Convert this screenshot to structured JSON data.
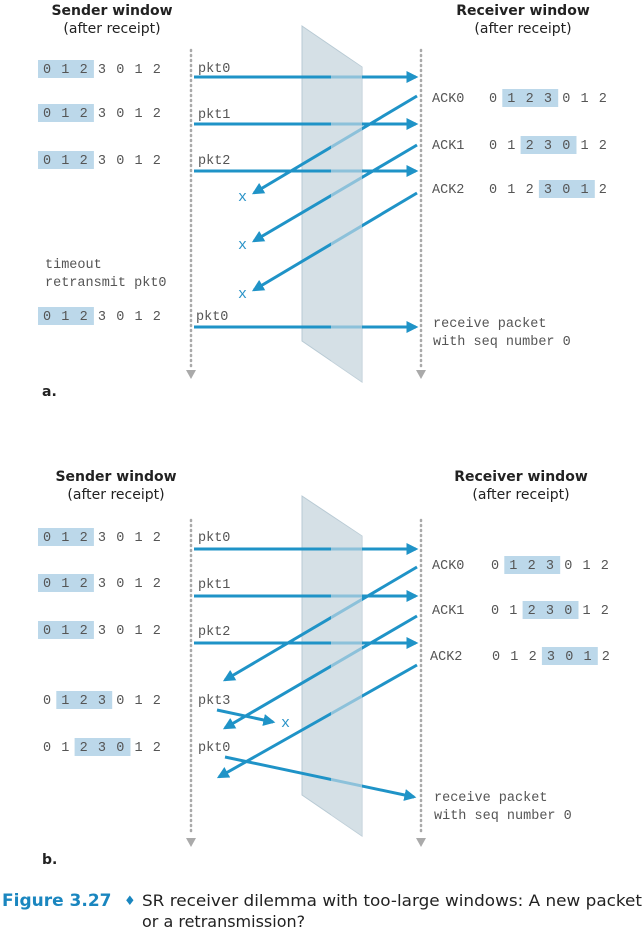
{
  "panel_a": {
    "sender_title": "Sender window",
    "sender_subtitle": "(after receipt)",
    "receiver_title": "Receiver window",
    "receiver_subtitle": "(after receipt)",
    "sender_windows": [
      {
        "digits": [
          "0",
          "1",
          "2",
          "3",
          "0",
          "1",
          "2"
        ],
        "highlight": [
          0,
          2
        ]
      },
      {
        "digits": [
          "0",
          "1",
          "2",
          "3",
          "0",
          "1",
          "2"
        ],
        "highlight": [
          0,
          2
        ]
      },
      {
        "digits": [
          "0",
          "1",
          "2",
          "3",
          "0",
          "1",
          "2"
        ],
        "highlight": [
          0,
          2
        ]
      },
      {
        "digits": [
          "0",
          "1",
          "2",
          "3",
          "0",
          "1",
          "2"
        ],
        "highlight": [
          0,
          2
        ]
      }
    ],
    "packets": [
      "pkt0",
      "pkt1",
      "pkt2",
      "pkt0"
    ],
    "acks": [
      "ACK0",
      "ACK1",
      "ACK2"
    ],
    "receiver_windows": [
      {
        "digits": [
          "0",
          "1",
          "2",
          "3",
          "0",
          "1",
          "2"
        ],
        "highlight": [
          1,
          3
        ]
      },
      {
        "digits": [
          "0",
          "1",
          "2",
          "3",
          "0",
          "1",
          "2"
        ],
        "highlight": [
          2,
          4
        ]
      },
      {
        "digits": [
          "0",
          "1",
          "2",
          "3",
          "0",
          "1",
          "2"
        ],
        "highlight": [
          3,
          5
        ]
      }
    ],
    "loss_marker": "x",
    "timeout_line1": "timeout",
    "timeout_line2": "retransmit pkt0",
    "receive_line1": "receive packet",
    "receive_line2": "with seq number 0",
    "label": "a."
  },
  "panel_b": {
    "sender_title": "Sender window",
    "sender_subtitle": "(after receipt)",
    "receiver_title": "Receiver window",
    "receiver_subtitle": "(after receipt)",
    "sender_windows": [
      {
        "digits": [
          "0",
          "1",
          "2",
          "3",
          "0",
          "1",
          "2"
        ],
        "highlight": [
          0,
          2
        ]
      },
      {
        "digits": [
          "0",
          "1",
          "2",
          "3",
          "0",
          "1",
          "2"
        ],
        "highlight": [
          0,
          2
        ]
      },
      {
        "digits": [
          "0",
          "1",
          "2",
          "3",
          "0",
          "1",
          "2"
        ],
        "highlight": [
          0,
          2
        ]
      },
      {
        "digits": [
          "0",
          "1",
          "2",
          "3",
          "0",
          "1",
          "2"
        ],
        "highlight": [
          1,
          3
        ]
      },
      {
        "digits": [
          "0",
          "1",
          "2",
          "3",
          "0",
          "1",
          "2"
        ],
        "highlight": [
          2,
          4
        ]
      }
    ],
    "packets": [
      "pkt0",
      "pkt1",
      "pkt2",
      "pkt3",
      "pkt0"
    ],
    "acks": [
      "ACK0",
      "ACK1",
      "ACK2"
    ],
    "receiver_windows": [
      {
        "digits": [
          "0",
          "1",
          "2",
          "3",
          "0",
          "1",
          "2"
        ],
        "highlight": [
          1,
          3
        ]
      },
      {
        "digits": [
          "0",
          "1",
          "2",
          "3",
          "0",
          "1",
          "2"
        ],
        "highlight": [
          2,
          4
        ]
      },
      {
        "digits": [
          "0",
          "1",
          "2",
          "3",
          "0",
          "1",
          "2"
        ],
        "highlight": [
          3,
          5
        ]
      }
    ],
    "loss_marker": "x",
    "receive_line1": "receive packet",
    "receive_line2": "with seq number 0",
    "label": "b."
  },
  "caption": {
    "figure": "Figure 3.27",
    "bullet": "♦",
    "line1": "SR receiver dilemma with too-large windows: A new packet",
    "line2": "or a retransmission?"
  },
  "colors": {
    "arrow": "#1f93c7",
    "window_highlight": "#bcd8ea",
    "channel": "#d5e0e6"
  }
}
